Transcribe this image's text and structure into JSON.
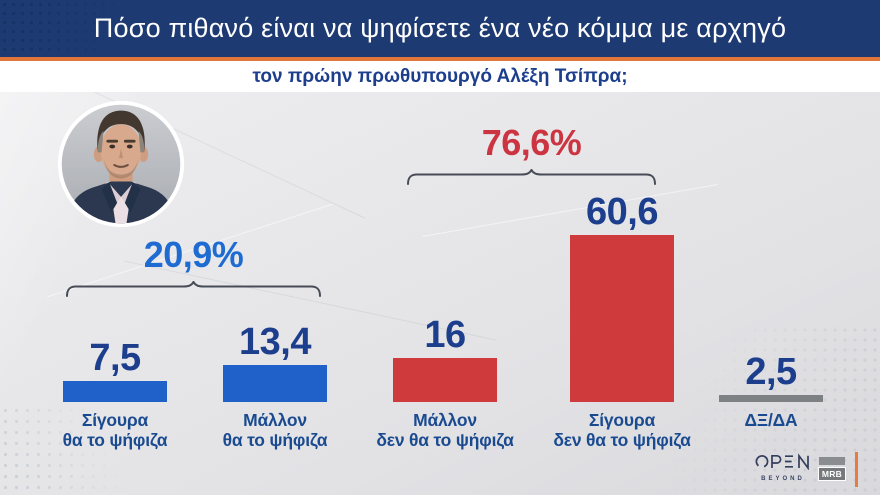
{
  "header": {
    "title": "Πόσο πιθανό είναι να ψηφίσετε ένα νέο κόμμα με αρχηγό",
    "subtitle": "τον πρώην πρωθυπουργό Αλέξη Τσίπρα;"
  },
  "chart_data": {
    "type": "bar",
    "title": "Πόσο πιθανό είναι να ψηφίσετε ένα νέο κόμμα με αρχηγό τον πρώην πρωθυπουργό Αλέξη Τσίπρα;",
    "categories": [
      "Σίγουρα θα το ψήφιζα",
      "Μάλλον θα το ψήφιζα",
      "Μάλλον δεν θα το ψήφιζα",
      "Σίγουρα δεν θα το ψήφιζα",
      "ΔΞ/ΔΑ"
    ],
    "category_lines": [
      [
        "Σίγουρα",
        "θα το ψήφιζα"
      ],
      [
        "Μάλλον",
        "θα το ψήφιζα"
      ],
      [
        "Μάλλον",
        "δεν θα το ψήφιζα"
      ],
      [
        "Σίγουρα",
        "δεν θα το ψήφιζα"
      ],
      [
        "ΔΞ/ΔΑ"
      ]
    ],
    "values": [
      7.5,
      13.4,
      16,
      60.6,
      2.5
    ],
    "value_labels": [
      "7,5",
      "13,4",
      "16",
      "60,6",
      "2,5"
    ],
    "bar_colors": [
      "#2061c9",
      "#2061c9",
      "#cf3b3c",
      "#cf3b3c",
      "#7e8184"
    ],
    "value_color": "#1c3e8d",
    "label_color": "#1a4a90",
    "groups": [
      {
        "label": "20,9%",
        "color": "#1e6bd2",
        "from": 0,
        "to": 1
      },
      {
        "label": "76,6%",
        "color": "#cb3440",
        "from": 2,
        "to": 3
      }
    ],
    "xlabel": "",
    "ylabel": "",
    "ylim": [
      0,
      100
    ],
    "grid": false,
    "legend_position": "none"
  },
  "branding": {
    "open_text": "OPEN",
    "open_sub": "BEYOND",
    "mrb_text": "MRB"
  },
  "colors": {
    "header_navy": "#1e3a72",
    "accent_orange": "#e0763a",
    "bracket": "#474c57",
    "background": "#e7e7ea"
  }
}
